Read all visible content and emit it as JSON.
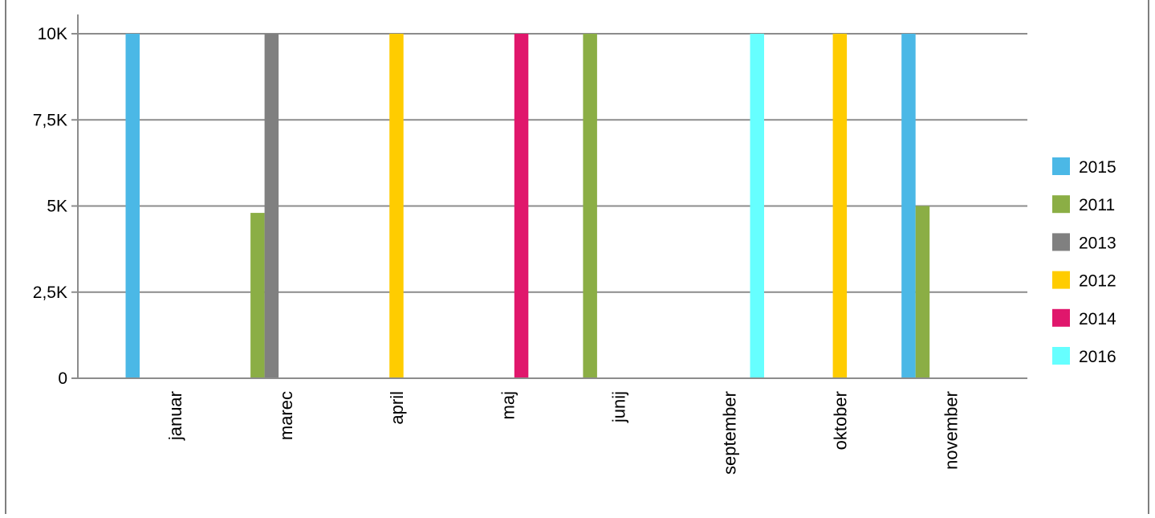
{
  "chart_data": {
    "type": "bar",
    "categories": [
      "januar",
      "marec",
      "april",
      "maj",
      "junij",
      "september",
      "oktober",
      "november"
    ],
    "series": [
      {
        "name": "2015",
        "color": "#4BB8E6",
        "values": [
          10000,
          null,
          null,
          null,
          null,
          null,
          null,
          10000
        ]
      },
      {
        "name": "2011",
        "color": "#8BAE45",
        "values": [
          null,
          4800,
          null,
          null,
          10000,
          null,
          null,
          5000
        ]
      },
      {
        "name": "2013",
        "color": "#808080",
        "values": [
          null,
          10000,
          null,
          null,
          null,
          null,
          null,
          null
        ]
      },
      {
        "name": "2012",
        "color": "#FFCC00",
        "values": [
          null,
          null,
          10000,
          null,
          null,
          null,
          10000,
          null
        ]
      },
      {
        "name": "2014",
        "color": "#E0176C",
        "values": [
          null,
          null,
          null,
          10000,
          null,
          null,
          null,
          null
        ]
      },
      {
        "name": "2016",
        "color": "#66FFFF",
        "values": [
          null,
          null,
          null,
          null,
          null,
          10000,
          null,
          null
        ]
      }
    ],
    "yticks": [
      {
        "value": 0,
        "label": "0"
      },
      {
        "value": 2500,
        "label": "2,5K"
      },
      {
        "value": 5000,
        "label": "5K"
      },
      {
        "value": 7500,
        "label": "7,5K"
      },
      {
        "value": 10000,
        "label": "10K"
      }
    ],
    "ylim": [
      0,
      10000
    ],
    "grid": true,
    "legend_position": "right",
    "title": "",
    "xlabel": "",
    "ylabel": ""
  }
}
